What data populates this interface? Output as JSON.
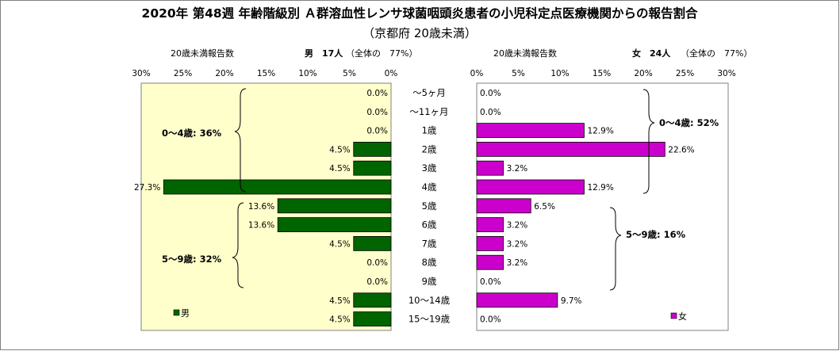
{
  "title": "2020年 第48週 年齢階級別 Ａ群溶血性レンサ球菌咽頭炎患者の小児科定点医療機関からの報告割合",
  "subtitle": "（京都府 20歳未満）",
  "left_panel": {
    "count_label": "20歳未満報告数",
    "sex_count": "男　17人",
    "share_text": "（全体の　77%）",
    "legend": "男",
    "bracket_labels": [
      "0～4歳: 36%",
      "5～9歳: 32%"
    ]
  },
  "right_panel": {
    "count_label": "20歳未満報告数",
    "sex_count": "女　24人",
    "share_text": "（全体の　77%）",
    "legend": "女",
    "bracket_labels": [
      "0～4歳: 52%",
      "5～9歳: 16%"
    ]
  },
  "colors": {
    "male": "#006400",
    "female": "#cc00cc",
    "plot_bg_left": "#ffffcc",
    "plot_bg_right": "#ffffff"
  },
  "chart_data": {
    "type": "bar",
    "orientation": "horizontal",
    "categories": [
      "～5ヶ月",
      "～11ヶ月",
      "1歳",
      "2歳",
      "3歳",
      "4歳",
      "5歳",
      "6歳",
      "7歳",
      "8歳",
      "9歳",
      "10～14歳",
      "15～19歳"
    ],
    "series": [
      {
        "name": "男",
        "values": [
          0.0,
          0.0,
          0.0,
          4.5,
          4.5,
          27.3,
          13.6,
          13.6,
          4.5,
          0.0,
          0.0,
          4.5,
          4.5
        ],
        "labels": [
          "0.0%",
          "0.0%",
          "0.0%",
          "4.5%",
          "4.5%",
          "27.3%",
          "13.6%",
          "13.6%",
          "4.5%",
          "0.0%",
          "0.0%",
          "4.5%",
          "4.5%"
        ]
      },
      {
        "name": "女",
        "values": [
          0.0,
          0.0,
          12.9,
          22.6,
          3.2,
          12.9,
          6.5,
          3.2,
          3.2,
          3.2,
          0.0,
          9.7,
          0.0
        ],
        "labels": [
          "0.0%",
          "0.0%",
          "12.9%",
          "22.6%",
          "3.2%",
          "12.9%",
          "6.5%",
          "3.2%",
          "3.2%",
          "3.2%",
          "0.0%",
          "9.7%",
          "0.0%"
        ]
      }
    ],
    "xlim": [
      0,
      30
    ],
    "ticks": [
      "0%",
      "5%",
      "10%",
      "15%",
      "20%",
      "25%",
      "30%"
    ],
    "tick_values": [
      0,
      5,
      10,
      15,
      20,
      25,
      30
    ]
  }
}
